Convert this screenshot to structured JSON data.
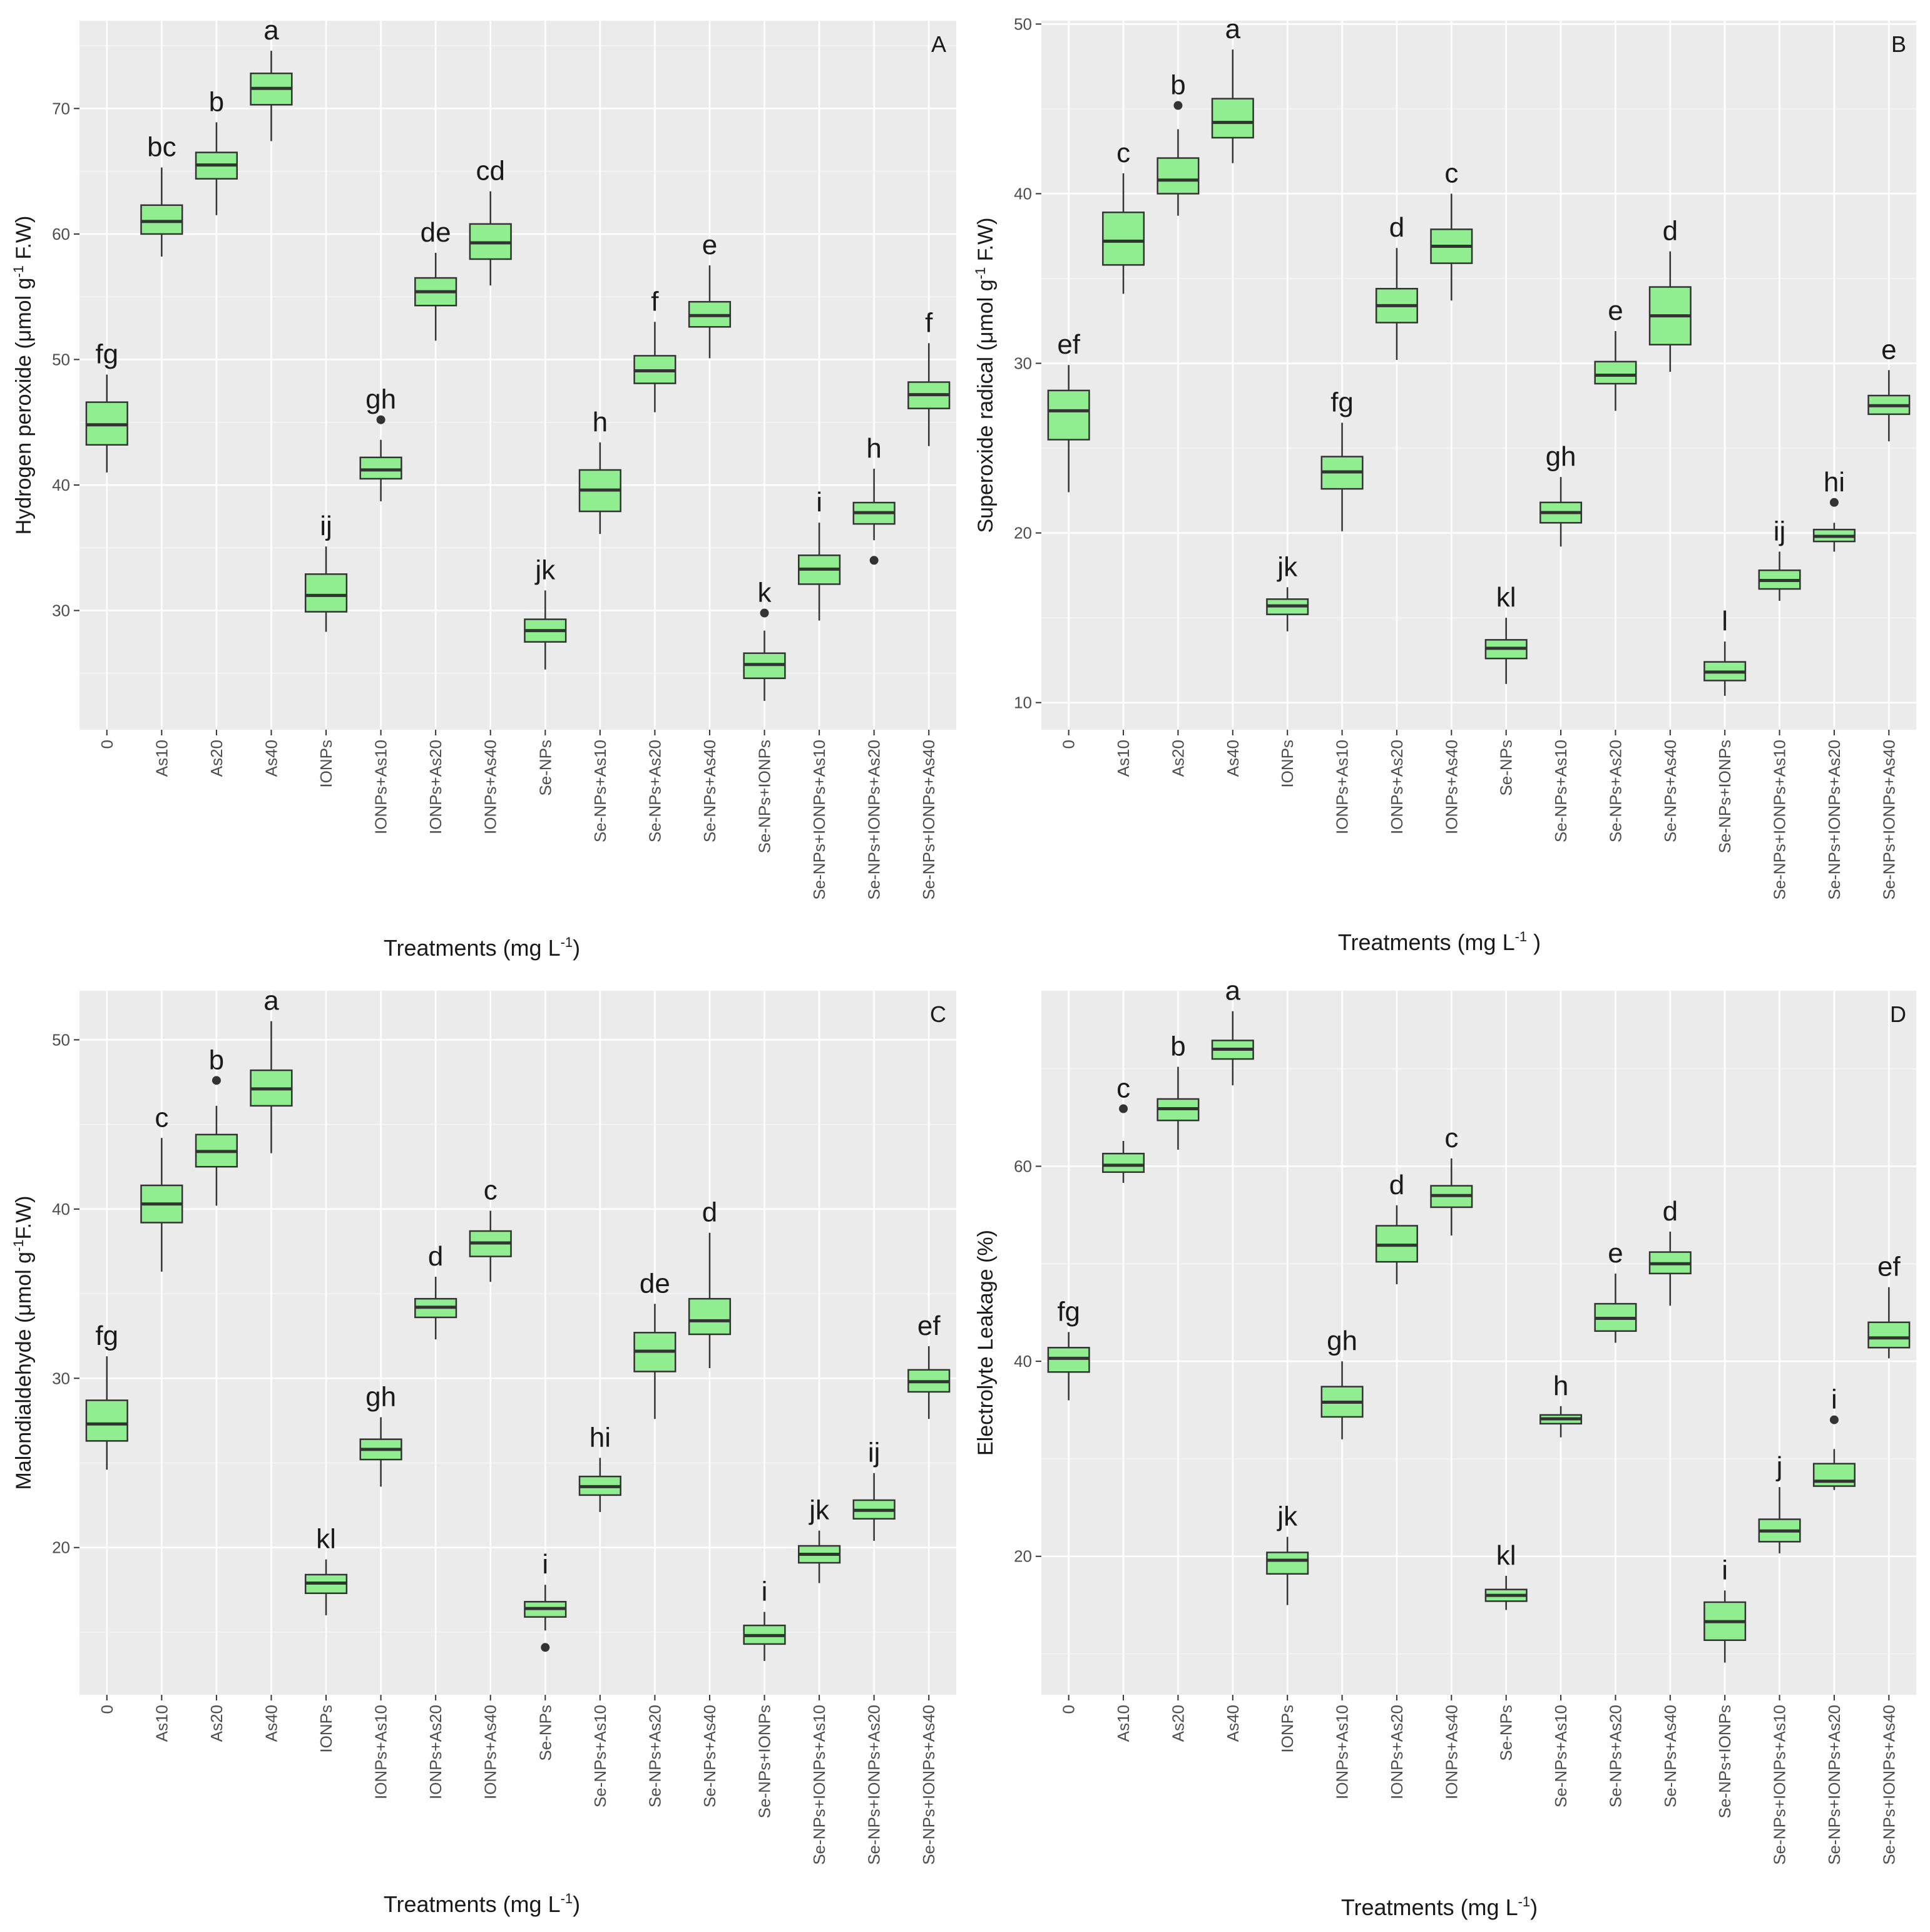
{
  "treatments": [
    "0",
    "As10",
    "As20",
    "As40",
    "IONPs",
    "IONPs+As10",
    "IONPs+As20",
    "IONPs+As40",
    "Se-NPs",
    "Se-NPs+As10",
    "Se-NPs+As20",
    "Se-NPs+As40",
    "Se-NPs+IONPs",
    "Se-NPs+IONPs+As10",
    "Se-NPs+IONPs+As20",
    "Se-NPs+IONPs+As40"
  ],
  "colors": {
    "panel_bg": "#EBEBEB",
    "grid": "#FFFFFF",
    "box_fill": "#90EE90",
    "box_stroke": "#333333",
    "text": "#1a1a1a",
    "tick_text": "#4d4d4d"
  },
  "chart_data": [
    {
      "panel": "A",
      "type": "boxplot",
      "ylabel_pre": "Hydrogen peroxide (μmol g",
      "ylabel_sup": "-1",
      "ylabel_post": " F.W)",
      "xlabel_pre": "Treatments (mg L",
      "xlabel_sup": "-1",
      "xlabel_post": ")",
      "ylim": [
        20.5,
        77
      ],
      "yticks": [
        30,
        40,
        50,
        60,
        70
      ],
      "boxes": [
        {
          "min": 41.0,
          "q1": 43.2,
          "median": 44.8,
          "q3": 46.6,
          "max": 48.8,
          "letter": "fg"
        },
        {
          "min": 58.2,
          "q1": 60.0,
          "median": 61.0,
          "q3": 62.3,
          "max": 65.3,
          "letter": "bc"
        },
        {
          "min": 61.5,
          "q1": 64.4,
          "median": 65.5,
          "q3": 66.5,
          "max": 68.9,
          "letter": "b"
        },
        {
          "min": 67.4,
          "q1": 70.3,
          "median": 71.6,
          "q3": 72.8,
          "max": 74.6,
          "letter": "a"
        },
        {
          "min": 28.3,
          "q1": 29.9,
          "median": 31.2,
          "q3": 32.9,
          "max": 35.1,
          "letter": "ij"
        },
        {
          "min": 38.7,
          "q1": 40.5,
          "median": 41.2,
          "q3": 42.2,
          "max": 43.6,
          "outliers": [
            45.2
          ],
          "letter": "gh"
        },
        {
          "min": 51.5,
          "q1": 54.3,
          "median": 55.4,
          "q3": 56.5,
          "max": 58.5,
          "letter": "de"
        },
        {
          "min": 55.9,
          "q1": 58.0,
          "median": 59.3,
          "q3": 60.8,
          "max": 63.4,
          "letter": "cd"
        },
        {
          "min": 25.3,
          "q1": 27.5,
          "median": 28.4,
          "q3": 29.3,
          "max": 31.6,
          "letter": "jk"
        },
        {
          "min": 36.1,
          "q1": 37.9,
          "median": 39.6,
          "q3": 41.2,
          "max": 43.4,
          "letter": "h"
        },
        {
          "min": 45.8,
          "q1": 48.1,
          "median": 49.1,
          "q3": 50.3,
          "max": 53.0,
          "letter": "f"
        },
        {
          "min": 50.1,
          "q1": 52.6,
          "median": 53.5,
          "q3": 54.6,
          "max": 57.5,
          "letter": "e"
        },
        {
          "min": 22.8,
          "q1": 24.6,
          "median": 25.7,
          "q3": 26.6,
          "max": 28.4,
          "outliers": [
            29.8
          ],
          "letter": "k"
        },
        {
          "min": 29.2,
          "q1": 32.1,
          "median": 33.3,
          "q3": 34.4,
          "max": 37.0,
          "letter": "i"
        },
        {
          "min": 35.6,
          "q1": 36.9,
          "median": 37.8,
          "q3": 38.6,
          "max": 41.3,
          "outliers": [
            34.0
          ],
          "letter": "h"
        },
        {
          "min": 43.1,
          "q1": 46.1,
          "median": 47.2,
          "q3": 48.2,
          "max": 51.3,
          "letter": "f"
        }
      ]
    },
    {
      "panel": "B",
      "type": "boxplot",
      "ylabel_pre": "Superoxide radical (μmol g",
      "ylabel_sup": "-1",
      "ylabel_post": " F.W)",
      "xlabel_pre": "Treatments (mg L",
      "xlabel_sup": "-1",
      "xlabel_post": " )",
      "ylim": [
        8.4,
        50.2
      ],
      "yticks": [
        10,
        20,
        30,
        40,
        50
      ],
      "boxes": [
        {
          "min": 22.4,
          "q1": 25.5,
          "median": 27.2,
          "q3": 28.4,
          "max": 29.9,
          "letter": "ef"
        },
        {
          "min": 34.1,
          "q1": 35.8,
          "median": 37.2,
          "q3": 38.9,
          "max": 41.2,
          "letter": "c"
        },
        {
          "min": 38.7,
          "q1": 40.0,
          "median": 40.8,
          "q3": 42.1,
          "max": 43.8,
          "outliers": [
            45.2
          ],
          "letter": "b"
        },
        {
          "min": 41.8,
          "q1": 43.3,
          "median": 44.2,
          "q3": 45.6,
          "max": 48.5,
          "letter": "a"
        },
        {
          "min": 14.2,
          "q1": 15.2,
          "median": 15.7,
          "q3": 16.1,
          "max": 16.8,
          "letter": "jk"
        },
        {
          "min": 20.1,
          "q1": 22.6,
          "median": 23.6,
          "q3": 24.5,
          "max": 26.5,
          "letter": "fg"
        },
        {
          "min": 30.2,
          "q1": 32.4,
          "median": 33.4,
          "q3": 34.4,
          "max": 36.8,
          "letter": "d"
        },
        {
          "min": 33.7,
          "q1": 35.9,
          "median": 36.9,
          "q3": 37.9,
          "max": 40.0,
          "letter": "c"
        },
        {
          "min": 11.1,
          "q1": 12.6,
          "median": 13.2,
          "q3": 13.7,
          "max": 15.0,
          "letter": "kl"
        },
        {
          "min": 19.2,
          "q1": 20.6,
          "median": 21.2,
          "q3": 21.8,
          "max": 23.3,
          "letter": "gh"
        },
        {
          "min": 27.2,
          "q1": 28.8,
          "median": 29.3,
          "q3": 30.1,
          "max": 31.9,
          "letter": "e"
        },
        {
          "min": 29.5,
          "q1": 31.1,
          "median": 32.8,
          "q3": 34.5,
          "max": 36.6,
          "letter": "d"
        },
        {
          "min": 10.4,
          "q1": 11.3,
          "median": 11.8,
          "q3": 12.4,
          "max": 13.6,
          "letter": "l"
        },
        {
          "min": 16.0,
          "q1": 16.7,
          "median": 17.2,
          "q3": 17.8,
          "max": 18.9,
          "letter": "ij"
        },
        {
          "min": 18.9,
          "q1": 19.5,
          "median": 19.8,
          "q3": 20.2,
          "max": 20.6,
          "outliers": [
            21.8
          ],
          "letter": "hi"
        },
        {
          "min": 25.4,
          "q1": 27.0,
          "median": 27.5,
          "q3": 28.1,
          "max": 29.6,
          "letter": "e"
        }
      ]
    },
    {
      "panel": "C",
      "type": "boxplot",
      "ylabel_pre": "Malondialdehyde (μmol g",
      "ylabel_sup": "-1",
      "ylabel_post": "F.W)",
      "xlabel_pre": "Treatments (mg L",
      "xlabel_sup": "-1",
      "xlabel_post": ")",
      "ylim": [
        11.3,
        52.9
      ],
      "yticks": [
        20,
        30,
        40,
        50
      ],
      "boxes": [
        {
          "min": 24.6,
          "q1": 26.3,
          "median": 27.3,
          "q3": 28.7,
          "max": 31.3,
          "letter": "fg"
        },
        {
          "min": 36.3,
          "q1": 39.2,
          "median": 40.3,
          "q3": 41.4,
          "max": 44.2,
          "letter": "c"
        },
        {
          "min": 40.2,
          "q1": 42.5,
          "median": 43.4,
          "q3": 44.4,
          "max": 46.1,
          "outliers": [
            47.6
          ],
          "letter": "b"
        },
        {
          "min": 43.3,
          "q1": 46.1,
          "median": 47.1,
          "q3": 48.2,
          "max": 51.1,
          "letter": "a"
        },
        {
          "min": 16.0,
          "q1": 17.3,
          "median": 17.9,
          "q3": 18.4,
          "max": 19.3,
          "letter": "kl"
        },
        {
          "min": 23.6,
          "q1": 25.2,
          "median": 25.8,
          "q3": 26.4,
          "max": 27.7,
          "letter": "gh"
        },
        {
          "min": 32.3,
          "q1": 33.6,
          "median": 34.2,
          "q3": 34.7,
          "max": 36.0,
          "letter": "d"
        },
        {
          "min": 35.7,
          "q1": 37.2,
          "median": 38.0,
          "q3": 38.7,
          "max": 39.9,
          "letter": "c"
        },
        {
          "min": 15.1,
          "q1": 15.9,
          "median": 16.4,
          "q3": 16.8,
          "max": 17.8,
          "outliers": [
            14.1
          ],
          "letter": "i"
        },
        {
          "min": 22.1,
          "q1": 23.1,
          "median": 23.6,
          "q3": 24.2,
          "max": 25.3,
          "letter": "hi"
        },
        {
          "min": 27.6,
          "q1": 30.4,
          "median": 31.6,
          "q3": 32.7,
          "max": 34.4,
          "letter": "de"
        },
        {
          "min": 30.6,
          "q1": 32.6,
          "median": 33.4,
          "q3": 34.7,
          "max": 38.6,
          "letter": "d"
        },
        {
          "min": 13.3,
          "q1": 14.3,
          "median": 14.8,
          "q3": 15.4,
          "max": 16.2,
          "letter": "i"
        },
        {
          "min": 17.9,
          "q1": 19.1,
          "median": 19.6,
          "q3": 20.1,
          "max": 21.0,
          "letter": "jk"
        },
        {
          "min": 20.4,
          "q1": 21.7,
          "median": 22.2,
          "q3": 22.8,
          "max": 24.4,
          "letter": "ij"
        },
        {
          "min": 27.6,
          "q1": 29.2,
          "median": 29.8,
          "q3": 30.5,
          "max": 31.9,
          "letter": "ef"
        }
      ]
    },
    {
      "panel": "D",
      "type": "boxplot",
      "ylabel_pre": "Electrolyte Leakage (%)",
      "ylabel_sup": "",
      "ylabel_post": "",
      "xlabel_pre": "Treatments (mg L",
      "xlabel_sup": "-1",
      "xlabel_post": ")",
      "ylim": [
        5.8,
        78
      ],
      "yticks": [
        20,
        40,
        60
      ],
      "boxes": [
        {
          "min": 36.0,
          "q1": 38.9,
          "median": 40.3,
          "q3": 41.4,
          "max": 43.0,
          "letter": "fg"
        },
        {
          "min": 58.3,
          "q1": 59.4,
          "median": 60.1,
          "q3": 61.3,
          "max": 62.6,
          "outliers": [
            65.9
          ],
          "letter": "c"
        },
        {
          "min": 61.7,
          "q1": 64.7,
          "median": 65.9,
          "q3": 66.9,
          "max": 70.2,
          "letter": "b"
        },
        {
          "min": 68.3,
          "q1": 71.0,
          "median": 72.0,
          "q3": 72.9,
          "max": 75.9,
          "letter": "a"
        },
        {
          "min": 15.0,
          "q1": 18.2,
          "median": 19.6,
          "q3": 20.4,
          "max": 22.0,
          "letter": "jk"
        },
        {
          "min": 32.0,
          "q1": 34.3,
          "median": 35.8,
          "q3": 37.4,
          "max": 40.0,
          "letter": "gh"
        },
        {
          "min": 47.9,
          "q1": 50.2,
          "median": 51.9,
          "q3": 53.9,
          "max": 56.0,
          "letter": "d"
        },
        {
          "min": 52.9,
          "q1": 55.8,
          "median": 57.0,
          "q3": 58.0,
          "max": 60.8,
          "letter": "c"
        },
        {
          "min": 14.5,
          "q1": 15.4,
          "median": 16.0,
          "q3": 16.6,
          "max": 18.0,
          "letter": "kl"
        },
        {
          "min": 32.2,
          "q1": 33.6,
          "median": 34.1,
          "q3": 34.5,
          "max": 35.4,
          "letter": "h"
        },
        {
          "min": 41.9,
          "q1": 43.1,
          "median": 44.4,
          "q3": 45.9,
          "max": 49.0,
          "letter": "e"
        },
        {
          "min": 45.7,
          "q1": 49.0,
          "median": 50.0,
          "q3": 51.2,
          "max": 53.3,
          "letter": "d"
        },
        {
          "min": 9.1,
          "q1": 11.4,
          "median": 13.3,
          "q3": 15.3,
          "max": 16.5,
          "letter": "i"
        },
        {
          "min": 20.3,
          "q1": 21.5,
          "median": 22.6,
          "q3": 23.8,
          "max": 27.1,
          "letter": "j"
        },
        {
          "min": 26.8,
          "q1": 27.2,
          "median": 27.7,
          "q3": 29.5,
          "max": 31.0,
          "outliers": [
            34.0
          ],
          "letter": "i"
        },
        {
          "min": 40.3,
          "q1": 41.4,
          "median": 42.4,
          "q3": 44.0,
          "max": 47.6,
          "letter": "ef"
        }
      ]
    }
  ]
}
